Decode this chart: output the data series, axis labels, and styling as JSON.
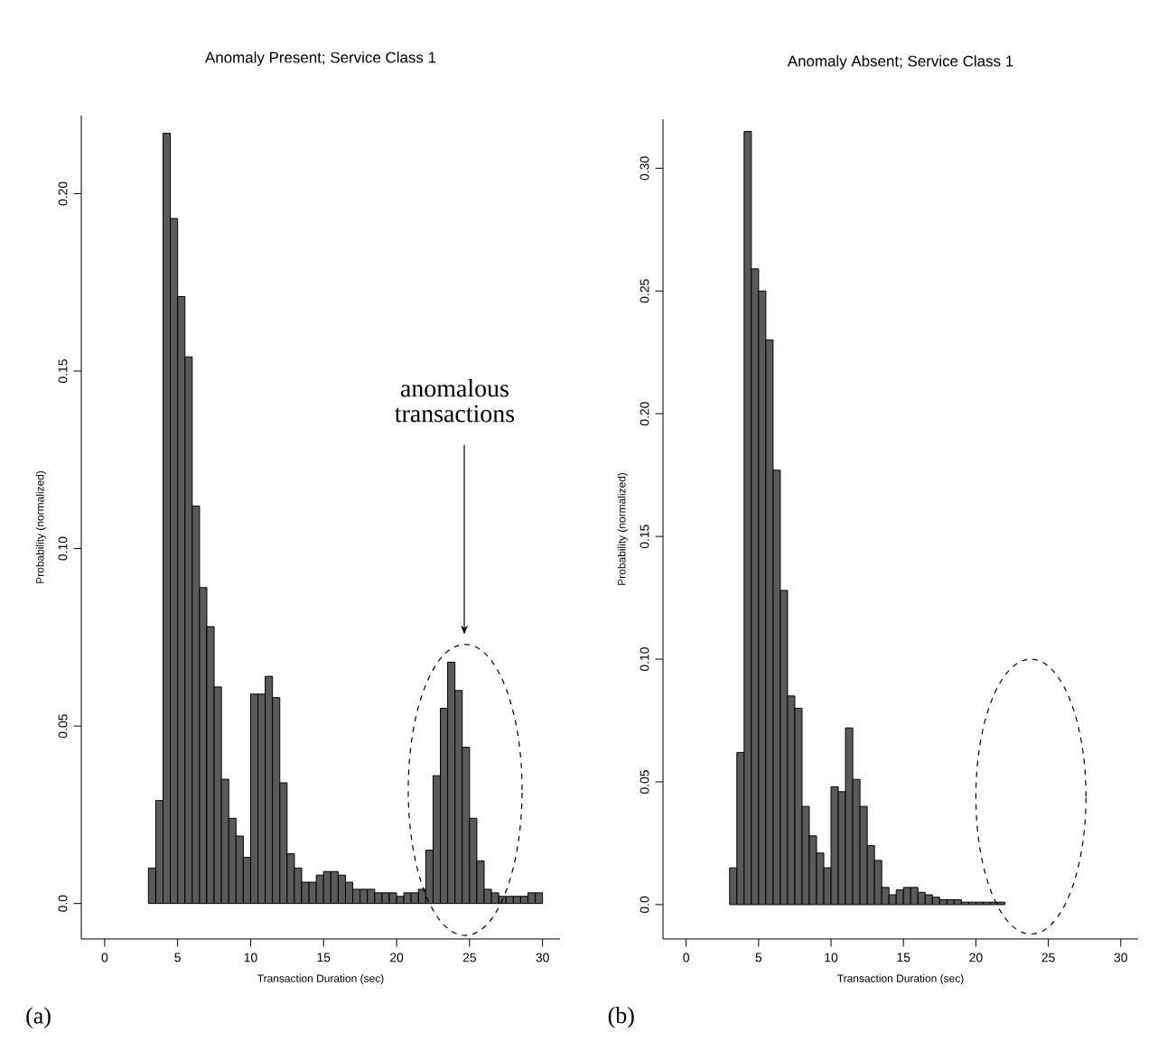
{
  "chart_data": [
    {
      "type": "histogram",
      "title": "Anomaly Present; Service Class 1",
      "xlabel": "Transaction Duration (sec)",
      "ylabel": "Probability (normalized)",
      "bins": [
        3.0,
        3.5,
        4.0,
        4.5,
        5.0,
        5.5,
        6.0,
        6.5,
        7.0,
        7.5,
        8.0,
        8.5,
        9.0,
        9.5,
        10.0,
        10.5,
        11.0,
        11.5,
        12.0,
        12.5,
        13.0,
        13.5,
        14.0,
        14.5,
        15.0,
        15.5,
        16.0,
        16.5,
        17.0,
        17.5,
        18.0,
        18.5,
        19.0,
        19.5,
        20.0,
        20.5,
        21.0,
        21.5,
        22.0,
        22.5,
        23.0,
        23.5,
        24.0,
        24.5,
        25.0,
        25.5,
        26.0,
        26.5,
        27.0,
        27.5,
        28.0,
        28.5,
        29.0,
        29.5,
        30.0
      ],
      "values": [
        0.01,
        0.029,
        0.217,
        0.193,
        0.171,
        0.154,
        0.112,
        0.089,
        0.078,
        0.061,
        0.035,
        0.024,
        0.019,
        0.013,
        0.059,
        0.059,
        0.064,
        0.058,
        0.034,
        0.014,
        0.01,
        0.006,
        0.006,
        0.008,
        0.009,
        0.009,
        0.008,
        0.006,
        0.004,
        0.004,
        0.004,
        0.003,
        0.003,
        0.003,
        0.002,
        0.003,
        0.003,
        0.004,
        0.015,
        0.036,
        0.055,
        0.068,
        0.06,
        0.044,
        0.024,
        0.012,
        0.004,
        0.003,
        0.002,
        0.002,
        0.002,
        0.002,
        0.003,
        0.003
      ],
      "color": "#5a5a5a",
      "xlim": [
        -1.6,
        31.2
      ],
      "ylim": [
        -0.01,
        0.222
      ],
      "xticks": [
        0,
        5,
        10,
        15,
        20,
        25,
        30
      ],
      "yticks": [
        {
          "value": 0,
          "label": "0.0"
        },
        0.05,
        {
          "value": 0.1,
          "label": "0.10"
        },
        0.15,
        {
          "value": 0.2,
          "label": "0.20"
        }
      ],
      "annotations": [
        "anomalous transactions",
        "(a)"
      ]
    },
    {
      "type": "histogram",
      "title": "Anomaly Absent; Service Class 1",
      "xlabel": "Transaction Duration (sec)",
      "ylabel": "Probability (normalized)",
      "bins": [
        3.0,
        3.5,
        4.0,
        4.5,
        5.0,
        5.5,
        6.0,
        6.5,
        7.0,
        7.5,
        8.0,
        8.5,
        9.0,
        9.5,
        10.0,
        10.5,
        11.0,
        11.5,
        12.0,
        12.5,
        13.0,
        13.5,
        14.0,
        14.5,
        15.0,
        15.5,
        16.0,
        16.5,
        17.0,
        17.5,
        18.0,
        18.5,
        19.0,
        19.5,
        20.0,
        20.5,
        21.0,
        21.5,
        22.0
      ],
      "values": [
        0.015,
        0.062,
        0.315,
        0.259,
        0.25,
        0.23,
        0.177,
        0.128,
        0.085,
        0.08,
        0.04,
        0.028,
        0.021,
        0.015,
        0.048,
        0.046,
        0.072,
        0.051,
        0.04,
        0.024,
        0.018,
        0.007,
        0.004,
        0.006,
        0.007,
        0.007,
        0.005,
        0.004,
        0.003,
        0.002,
        0.002,
        0.002,
        0.001,
        0.001,
        0.001,
        0.001,
        0.001,
        0.001
      ],
      "color": "#5a5a5a",
      "xlim": [
        -1.6,
        31.2
      ],
      "ylim": [
        -0.014,
        0.32
      ],
      "xticks": [
        0,
        5,
        10,
        15,
        20,
        25,
        30
      ],
      "yticks": [
        {
          "value": 0,
          "label": "0.0"
        },
        0.05,
        {
          "value": 0.1,
          "label": "0.10"
        },
        0.15,
        {
          "value": 0.2,
          "label": "0.20"
        },
        0.25,
        {
          "value": 0.3,
          "label": "0.30"
        }
      ],
      "annotations": [
        "(b)"
      ]
    }
  ]
}
